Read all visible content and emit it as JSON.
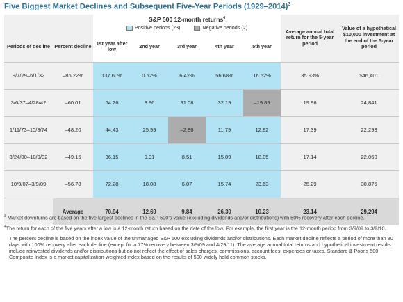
{
  "title": "Five Biggest Market Declines and Subsequent Five-Year Periods (1929–2014)",
  "title_sup": "3",
  "header": {
    "sp_title": "S&P 500 12-month returns",
    "sp_title_sup": "4",
    "legend_positive": "Positive periods (23)",
    "legend_negative": "Negative periods (2)",
    "col_periods": "Periods of decline",
    "col_percent": "Percent decline",
    "col_y1": "1st year after low",
    "col_y2": "2nd year",
    "col_y3": "3rd year",
    "col_y4": "4th year",
    "col_y5": "5th year",
    "col_avg_return": "Average annual total return for the 5-year period",
    "col_hypo": "Value of a hypothetical $10,000 investment at the end of the 5-year period"
  },
  "rows": [
    {
      "period": "9/7/29–6/1/32",
      "decline": "–86.22%",
      "y1": "137.60%",
      "y2": "0.52%",
      "y3": "6.42%",
      "y4": "56.68%",
      "y5": "16.52%",
      "avg": "35.93%",
      "value": "$46,401"
    },
    {
      "period": "3/6/37–4/28/42",
      "decline": "–60.01",
      "y1": "64.26",
      "y2": "8.96",
      "y3": "31.08",
      "y4": "32.19",
      "y5": "–19.89",
      "avg": "19.96",
      "value": "24,841"
    },
    {
      "period": "1/11/73–10/3/74",
      "decline": "–48.20",
      "y1": "44.43",
      "y2": "25.99",
      "y3": "–2.86",
      "y4": "11.79",
      "y5": "12.82",
      "avg": "17.39",
      "value": "22,293"
    },
    {
      "period": "3/24/00–10/9/02",
      "decline": "–49.15",
      "y1": "36.15",
      "y2": "9.91",
      "y3": "8.51",
      "y4": "15.09",
      "y5": "18.05",
      "avg": "17.14",
      "value": "22,060"
    },
    {
      "period": "10/9/07–3/9/09",
      "decline": "–56.78",
      "y1": "72.28",
      "y2": "18.08",
      "y3": "6.07",
      "y4": "15.74",
      "y5": "23.63",
      "avg": "25.29",
      "value": "30,875"
    }
  ],
  "negative_cells": [
    [
      1,
      "y5"
    ],
    [
      2,
      "y3"
    ]
  ],
  "average": {
    "label": "Average",
    "y1": "70.94",
    "y2": "12.69",
    "y3": "9.84",
    "y4": "26.30",
    "y5": "10.23",
    "avg": "23.14",
    "value": "29,294"
  },
  "colors": {
    "title": "#2a6f93",
    "positive": "#b2e3f4",
    "negative": "#acacac",
    "panel": "#f0f0f0",
    "average": "#d9d9d9"
  },
  "notes": {
    "n3_sup": "3",
    "n3": "Market downturns are based on the five largest declines in the S&P 500’s value (excluding dividends and/or distributions) with 50% recovery after each decline.",
    "n4_sup": "4",
    "n4": "The return for each of the five years after a low is a 12-month return based on the date of the low. For example, the first year is the 12-month period from 3/9/09 to 3/9/10.",
    "n5": "The percent decline is based on the index value of the unmanaged S&P 500 excluding dividends and/or distributions. Each market decline reflects a period of more than 80 days with 100% recovery after each decline (except for a 77% recovery between 3/9/09 and 4/29/11). The average annual total returns and hypothetical investment results include reinvested dividends and/or distributions but do not reflect the effect of sales charges, commissions, account fees, expenses or taxes. Standard & Poor’s 500 Composite Index is a market capitalization-weighted index based on the results of 500 widely held common stocks."
  }
}
